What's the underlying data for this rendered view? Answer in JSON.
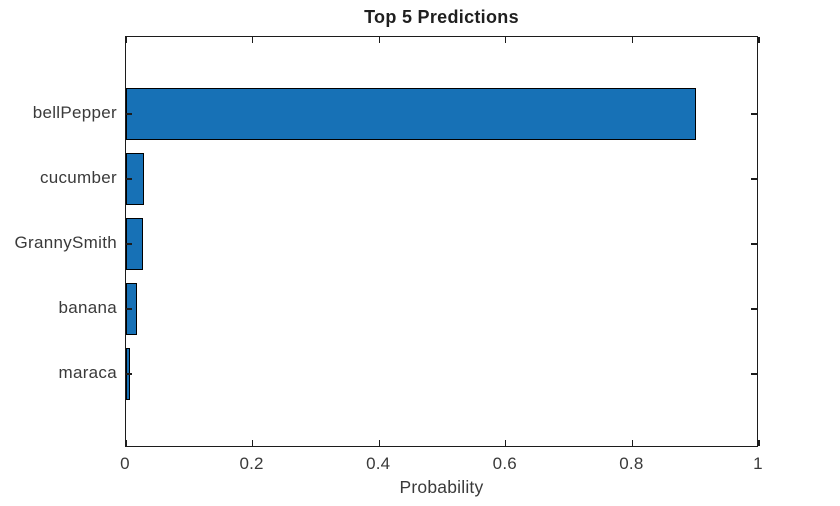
{
  "chart_data": {
    "type": "bar",
    "orientation": "horizontal",
    "title": "Top 5 Predictions",
    "xlabel": "Probability",
    "ylabel": "",
    "categories": [
      "bellPepper",
      "cucumber",
      "GrannySmith",
      "banana",
      "maraca"
    ],
    "values": [
      0.9,
      0.028,
      0.027,
      0.017,
      0.006
    ],
    "xlim": [
      0,
      1
    ],
    "x_ticks": [
      0,
      0.2,
      0.4,
      0.6,
      0.8,
      1
    ],
    "x_tick_labels": [
      "0",
      "0.2",
      "0.4",
      "0.6",
      "0.8",
      "1"
    ],
    "grid": false,
    "legend": false,
    "box": true,
    "tick_direction": "in",
    "bar_color": "#1771b6",
    "bar_edge_color": "#000000",
    "axis_color": "#1c1c1c",
    "text_color": "#3a3a3a",
    "title_color": "#1f1f1f",
    "background_color": "#ffffff"
  }
}
